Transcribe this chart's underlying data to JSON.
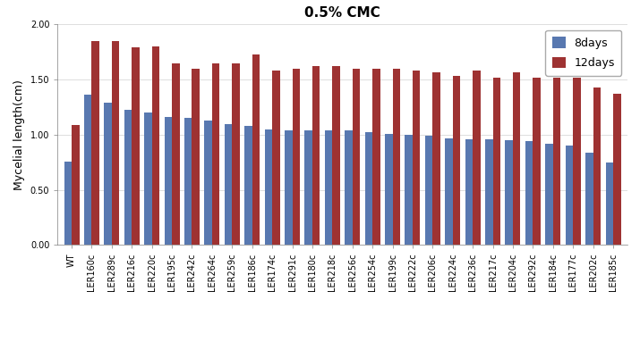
{
  "title": "0.5% CMC",
  "ylabel": "Mycelial length(cm)",
  "categories": [
    "WT",
    "LER160c",
    "LER289c",
    "LER216c",
    "LER220c",
    "LER195c",
    "LER242c",
    "LER264c",
    "LER259c",
    "LER186c",
    "LER174c",
    "LER291c",
    "LER180c",
    "LER218c",
    "LER256c",
    "LER254c",
    "LER199c",
    "LER222c",
    "LER206c",
    "LER224c",
    "LER236c",
    "LER217c",
    "LER204c",
    "LER292c",
    "LER184c",
    "LER177c",
    "LER202c",
    "LER185c"
  ],
  "values_8days": [
    0.76,
    1.36,
    1.29,
    1.23,
    1.2,
    1.16,
    1.15,
    1.13,
    1.1,
    1.08,
    1.05,
    1.04,
    1.04,
    1.04,
    1.04,
    1.02,
    1.01,
    1.0,
    0.99,
    0.97,
    0.96,
    0.96,
    0.95,
    0.94,
    0.92,
    0.9,
    0.84,
    0.75
  ],
  "values_12days": [
    1.09,
    1.85,
    1.85,
    1.79,
    1.8,
    1.65,
    1.6,
    1.65,
    1.65,
    1.73,
    1.58,
    1.6,
    1.62,
    1.62,
    1.6,
    1.6,
    1.6,
    1.58,
    1.57,
    1.53,
    1.58,
    1.52,
    1.57,
    1.52,
    1.52,
    1.52,
    1.43,
    1.37
  ],
  "color_8days": "#5878b0",
  "color_12days": "#9e3232",
  "ylim": [
    0.0,
    2.0
  ],
  "yticks": [
    0.0,
    0.5,
    1.0,
    1.5,
    2.0
  ],
  "legend_labels": [
    "8days",
    "12days"
  ],
  "bar_width": 0.38,
  "title_fontsize": 11,
  "ylabel_fontsize": 9,
  "tick_fontsize": 7,
  "legend_fontsize": 9
}
